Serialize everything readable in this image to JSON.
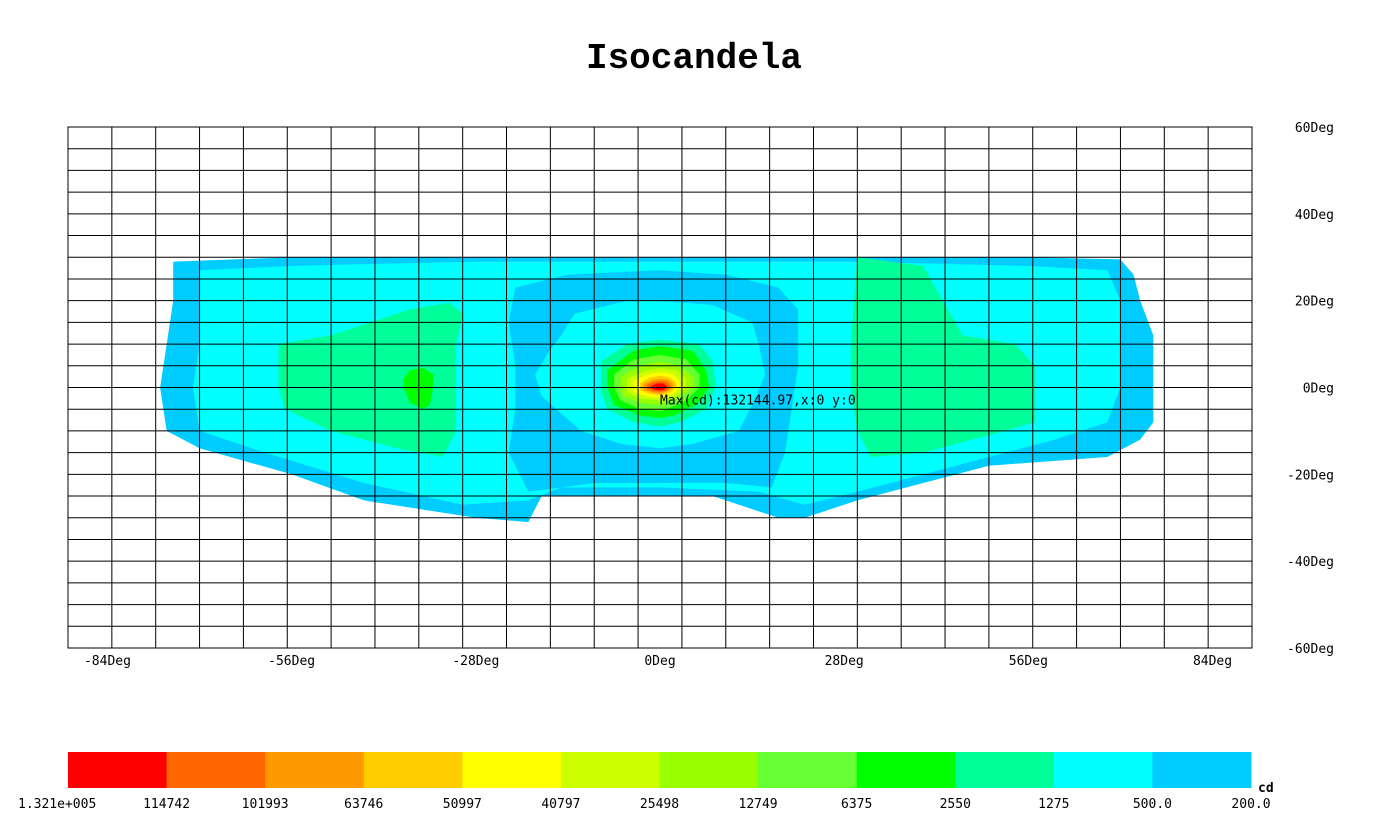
{
  "chart_data": {
    "type": "heatmap",
    "title": "Isocandela",
    "unit": "cd",
    "x_ticks": [
      -84,
      -56,
      -28,
      0,
      28,
      56,
      84
    ],
    "y_ticks": [
      60,
      40,
      20,
      0,
      -20,
      -40,
      -60
    ],
    "x_tick_labels": [
      "-84Deg",
      "-56Deg",
      "-28Deg",
      "0Deg",
      "28Deg",
      "56Deg",
      "84Deg"
    ],
    "y_tick_labels": [
      "60Deg",
      "40Deg",
      "20Deg",
      "0Deg",
      "-20Deg",
      "-40Deg",
      "-60Deg"
    ],
    "xlim": [
      -90,
      90
    ],
    "ylim": [
      -60,
      60
    ],
    "grid": true,
    "max_annotation": "Max(cd):132144.97,x:0 y:0",
    "max": {
      "value": 132144.97,
      "x": 0,
      "y": 0
    },
    "legend": {
      "placement": "bottom",
      "colors": [
        "#ff0000",
        "#ff6600",
        "#ff9900",
        "#ffcc00",
        "#ffff00",
        "#ccff00",
        "#99ff00",
        "#66ff33",
        "#00ff00",
        "#00ff99",
        "#00ffff",
        "#00ccff"
      ],
      "labels": [
        "1.321e+005",
        "114742",
        "101993",
        "63746",
        "50997",
        "40797",
        "25498",
        "12749",
        "6375",
        "2550",
        "1275",
        "500.0",
        "200.0"
      ]
    },
    "contour_levels": [
      {
        "level_cd": 200.0,
        "color": "#00ccff",
        "outline": [
          [
            -74,
            29
          ],
          [
            -56,
            30
          ],
          [
            -28,
            30
          ],
          [
            0,
            30
          ],
          [
            28,
            30
          ],
          [
            56,
            30
          ],
          [
            70,
            29.5
          ],
          [
            72,
            26
          ],
          [
            73,
            20
          ],
          [
            75,
            12
          ],
          [
            75,
            0
          ],
          [
            75,
            -8
          ],
          [
            73,
            -12
          ],
          [
            68,
            -16
          ],
          [
            50,
            -18
          ],
          [
            30,
            -26
          ],
          [
            22,
            -30
          ],
          [
            18,
            -30
          ],
          [
            8,
            -25
          ],
          [
            -18,
            -25
          ],
          [
            -20,
            -31
          ],
          [
            -28,
            -30
          ],
          [
            -45,
            -26
          ],
          [
            -56,
            -20
          ],
          [
            -70,
            -14
          ],
          [
            -75,
            -10
          ],
          [
            -76,
            0
          ],
          [
            -75,
            10
          ],
          [
            -74,
            20
          ]
        ]
      },
      {
        "level_cd": 500.0,
        "color": "#00ffff",
        "outline": [
          [
            -70,
            27
          ],
          [
            -56,
            28
          ],
          [
            -28,
            29
          ],
          [
            0,
            29
          ],
          [
            28,
            29
          ],
          [
            56,
            28
          ],
          [
            68,
            27
          ],
          [
            70,
            20
          ],
          [
            70,
            10
          ],
          [
            70,
            0
          ],
          [
            68,
            -8
          ],
          [
            60,
            -12
          ],
          [
            45,
            -18
          ],
          [
            30,
            -24
          ],
          [
            22,
            -27
          ],
          [
            15,
            -24
          ],
          [
            0,
            -23
          ],
          [
            -15,
            -23
          ],
          [
            -20,
            -26
          ],
          [
            -30,
            -27
          ],
          [
            -45,
            -22
          ],
          [
            -60,
            -15
          ],
          [
            -70,
            -10
          ],
          [
            -71,
            0
          ],
          [
            -70,
            10
          ],
          [
            -70,
            20
          ]
        ]
      },
      {
        "level_cd": 1275,
        "color": "#00ccff",
        "outline": [
          [
            -22,
            23
          ],
          [
            -14,
            26
          ],
          [
            0,
            27
          ],
          [
            10,
            26
          ],
          [
            18,
            23
          ],
          [
            21,
            18
          ],
          [
            21,
            5
          ],
          [
            20,
            -5
          ],
          [
            19,
            -15
          ],
          [
            17,
            -23
          ],
          [
            10,
            -22
          ],
          [
            0,
            -22
          ],
          [
            -10,
            -22
          ],
          [
            -20,
            -24
          ],
          [
            -23,
            -15
          ],
          [
            -22,
            -5
          ],
          [
            -22,
            5
          ],
          [
            -23,
            15
          ]
        ]
      },
      {
        "level_cd": 500.0,
        "color": "#00ffff",
        "outline": [
          [
            -13,
            17
          ],
          [
            -5,
            20
          ],
          [
            0,
            20
          ],
          [
            8,
            19
          ],
          [
            14,
            15
          ],
          [
            15,
            10
          ],
          [
            16,
            3
          ],
          [
            14,
            -4
          ],
          [
            12,
            -10
          ],
          [
            5,
            -13
          ],
          [
            0,
            -14
          ],
          [
            -6,
            -13
          ],
          [
            -12,
            -10
          ],
          [
            -15,
            -6
          ],
          [
            -18,
            -2
          ],
          [
            -19,
            3
          ],
          [
            -17,
            8
          ],
          [
            -15,
            12
          ]
        ]
      },
      {
        "level_cd": 1275,
        "color": "#00ff99",
        "outline": [
          [
            -58,
            10
          ],
          [
            -50,
            12
          ],
          [
            -38,
            18
          ],
          [
            -32,
            19.5
          ],
          [
            -30,
            17
          ],
          [
            -31,
            10
          ],
          [
            -31,
            0
          ],
          [
            -31,
            -10
          ],
          [
            -33,
            -16
          ],
          [
            -40,
            -14
          ],
          [
            -50,
            -10
          ],
          [
            -57,
            -5
          ],
          [
            -58,
            0
          ]
        ]
      },
      {
        "level_cd": 1275,
        "color": "#00ff99",
        "outline": [
          [
            30,
            30
          ],
          [
            40,
            28
          ],
          [
            43,
            20
          ],
          [
            46,
            12
          ],
          [
            54,
            10
          ],
          [
            57,
            5
          ],
          [
            57,
            0
          ],
          [
            57,
            -8
          ],
          [
            50,
            -11
          ],
          [
            40,
            -15
          ],
          [
            32,
            -16
          ],
          [
            30,
            -10
          ],
          [
            29,
            0
          ],
          [
            29,
            10
          ]
        ]
      },
      {
        "level_cd": 2550,
        "color": "#00ff00",
        "outline": [
          [
            -38,
            4
          ],
          [
            -36,
            4.5
          ],
          [
            -34.5,
            3
          ],
          [
            -34.5,
            0
          ],
          [
            -35,
            -4
          ],
          [
            -36,
            -5
          ],
          [
            -38,
            -3.5
          ],
          [
            -39,
            0
          ],
          [
            -39,
            2
          ]
        ]
      },
      {
        "level_cd": 2550,
        "color": "#00ff99",
        "outline": [
          [
            -9,
            6
          ],
          [
            -5,
            10
          ],
          [
            0,
            11
          ],
          [
            6,
            10
          ],
          [
            8,
            6
          ],
          [
            8.5,
            0
          ],
          [
            7,
            -5
          ],
          [
            3,
            -8
          ],
          [
            0,
            -9
          ],
          [
            -4,
            -8
          ],
          [
            -8,
            -5
          ],
          [
            -9,
            -1
          ],
          [
            -9,
            3
          ]
        ]
      },
      {
        "level_cd": 6375,
        "color": "#00ff00",
        "outline": [
          [
            -8,
            4
          ],
          [
            -4,
            8.5
          ],
          [
            0,
            9.5
          ],
          [
            5,
            8.5
          ],
          [
            7,
            4
          ],
          [
            7.5,
            0
          ],
          [
            5.5,
            -4
          ],
          [
            2,
            -6.5
          ],
          [
            0,
            -7
          ],
          [
            -3,
            -6.5
          ],
          [
            -7,
            -4
          ],
          [
            -8,
            0
          ]
        ]
      },
      {
        "level_cd": 12749,
        "color": "#66ff33",
        "outline": [
          [
            -7,
            3
          ],
          [
            -4,
            6.5
          ],
          [
            0,
            7.5
          ],
          [
            4,
            6.5
          ],
          [
            6,
            3
          ],
          [
            6,
            0
          ],
          [
            4,
            -3
          ],
          [
            1,
            -5
          ],
          [
            0,
            -5.5
          ],
          [
            -3,
            -5
          ],
          [
            -6,
            -3
          ],
          [
            -7,
            0
          ]
        ]
      },
      {
        "level_cd": 25498,
        "color": "#99ff00",
        "outline": [
          [
            -6,
            2.5
          ],
          [
            -3,
            5
          ],
          [
            0,
            6
          ],
          [
            3,
            5
          ],
          [
            5,
            2.5
          ],
          [
            5,
            0
          ],
          [
            3,
            -2.5
          ],
          [
            0,
            -4
          ],
          [
            -3,
            -3.5
          ],
          [
            -5.5,
            -2
          ],
          [
            -6,
            0
          ]
        ]
      },
      {
        "level_cd": 40797,
        "color": "#ccff00",
        "outline": [
          [
            -5,
            2
          ],
          [
            -2,
            4
          ],
          [
            0,
            4.5
          ],
          [
            2.5,
            4
          ],
          [
            4,
            2
          ],
          [
            4,
            0
          ],
          [
            2.5,
            -2
          ],
          [
            0,
            -3
          ],
          [
            -3,
            -2.5
          ],
          [
            -5,
            -1
          ],
          [
            -5,
            0
          ]
        ]
      },
      {
        "level_cd": 50997,
        "color": "#ffff00",
        "outline": [
          [
            -4,
            1.5
          ],
          [
            -2,
            3
          ],
          [
            0,
            3.5
          ],
          [
            2,
            3
          ],
          [
            3,
            1.5
          ],
          [
            3,
            0
          ],
          [
            2,
            -1.5
          ],
          [
            0,
            -2.3
          ],
          [
            -2,
            -2
          ],
          [
            -4,
            -1
          ],
          [
            -4,
            0
          ]
        ]
      },
      {
        "level_cd": 63746,
        "color": "#ffcc00",
        "outline": [
          [
            -3,
            1
          ],
          [
            -1.5,
            2.3
          ],
          [
            0,
            2.7
          ],
          [
            1.5,
            2.3
          ],
          [
            2.5,
            1
          ],
          [
            2.5,
            0
          ],
          [
            1.5,
            -1.2
          ],
          [
            0,
            -1.8
          ],
          [
            -1.5,
            -1.5
          ],
          [
            -3,
            -0.7
          ],
          [
            -3,
            0
          ]
        ]
      },
      {
        "level_cd": 101993,
        "color": "#ff9900",
        "outline": [
          [
            -2.5,
            0.8
          ],
          [
            -1,
            1.8
          ],
          [
            0,
            2
          ],
          [
            1.2,
            1.8
          ],
          [
            2,
            0.8
          ],
          [
            2,
            0
          ],
          [
            1,
            -1
          ],
          [
            0,
            -1.4
          ],
          [
            -1,
            -1.2
          ],
          [
            -2.5,
            -0.6
          ],
          [
            -2.5,
            0
          ]
        ]
      },
      {
        "level_cd": 114742,
        "color": "#ff6600",
        "outline": [
          [
            -2,
            0.6
          ],
          [
            -1,
            1.3
          ],
          [
            0,
            1.5
          ],
          [
            1,
            1.3
          ],
          [
            1.5,
            0.6
          ],
          [
            1.5,
            0
          ],
          [
            1,
            -0.8
          ],
          [
            0,
            -1
          ],
          [
            -1,
            -0.9
          ],
          [
            -2,
            -0.4
          ],
          [
            -2,
            0
          ]
        ]
      },
      {
        "level_cd": 132144.97,
        "color": "#ff0000",
        "outline": [
          [
            -1.3,
            0.4
          ],
          [
            -0.6,
            0.9
          ],
          [
            0,
            1
          ],
          [
            0.6,
            0.9
          ],
          [
            1,
            0.4
          ],
          [
            1,
            0
          ],
          [
            0.6,
            -0.5
          ],
          [
            0,
            -0.7
          ],
          [
            -0.6,
            -0.6
          ],
          [
            -1.3,
            -0.3
          ],
          [
            -1.3,
            0
          ]
        ]
      }
    ]
  }
}
